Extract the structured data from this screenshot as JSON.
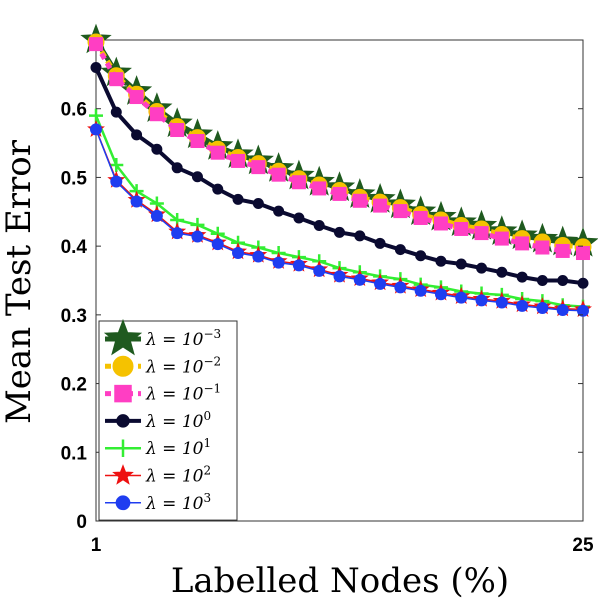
{
  "chart_data": {
    "type": "line",
    "xlabel": "Labelled Nodes (%)",
    "ylabel": "Mean Test Error",
    "xlim": [
      1,
      25
    ],
    "ylim": [
      0,
      0.7
    ],
    "x_ticks": [
      "1",
      "25"
    ],
    "y_ticks": [
      "0",
      "0.1",
      "0.2",
      "0.3",
      "0.4",
      "0.5",
      "0.6"
    ],
    "grid": false,
    "legend_position": "bottom-left",
    "x": [
      1,
      2,
      3,
      4,
      5,
      6,
      7,
      8,
      9,
      10,
      11,
      12,
      13,
      14,
      15,
      16,
      17,
      18,
      19,
      20,
      21,
      22,
      23,
      24,
      25
    ],
    "series": [
      {
        "name": "λ = 10^-3",
        "label_base": "λ = 10",
        "label_exp": "−3",
        "color": "#1f5a1f",
        "marker": "star",
        "width": 5,
        "values": [
          0.7,
          0.652,
          0.625,
          0.6,
          0.578,
          0.562,
          0.545,
          0.533,
          0.524,
          0.513,
          0.502,
          0.493,
          0.485,
          0.475,
          0.468,
          0.46,
          0.45,
          0.442,
          0.434,
          0.429,
          0.421,
          0.415,
          0.41,
          0.406,
          0.404
        ]
      },
      {
        "name": "λ = 10^-2",
        "label_base": "λ = 10",
        "label_exp": "−2",
        "color": "#f5c200",
        "marker": "circle",
        "width": 5,
        "values": [
          0.697,
          0.648,
          0.621,
          0.596,
          0.574,
          0.558,
          0.541,
          0.529,
          0.52,
          0.509,
          0.498,
          0.489,
          0.481,
          0.471,
          0.464,
          0.456,
          0.446,
          0.438,
          0.43,
          0.425,
          0.417,
          0.411,
          0.406,
          0.401,
          0.399
        ]
      },
      {
        "name": "λ = 10^-1",
        "label_base": "λ = 10",
        "label_exp": "−1",
        "color": "#ff3ec3",
        "marker": "square",
        "width": 5,
        "values": [
          0.694,
          0.643,
          0.617,
          0.592,
          0.569,
          0.553,
          0.536,
          0.524,
          0.515,
          0.504,
          0.493,
          0.484,
          0.476,
          0.466,
          0.459,
          0.451,
          0.441,
          0.433,
          0.425,
          0.419,
          0.411,
          0.404,
          0.398,
          0.393,
          0.39
        ]
      },
      {
        "name": "λ = 10^0",
        "label_base": "λ = 10",
        "label_exp": "0",
        "color": "#0a0a30",
        "marker": "circle",
        "width": 4,
        "values": [
          0.66,
          0.595,
          0.562,
          0.541,
          0.514,
          0.501,
          0.483,
          0.468,
          0.462,
          0.451,
          0.441,
          0.43,
          0.42,
          0.415,
          0.404,
          0.395,
          0.386,
          0.378,
          0.374,
          0.368,
          0.362,
          0.355,
          0.35,
          0.35,
          0.346
        ]
      },
      {
        "name": "λ = 10^1",
        "label_base": "λ = 10",
        "label_exp": "1",
        "color": "#33ee33",
        "marker": "plus",
        "width": 2.5,
        "values": [
          0.59,
          0.518,
          0.48,
          0.462,
          0.438,
          0.431,
          0.418,
          0.405,
          0.398,
          0.39,
          0.384,
          0.378,
          0.368,
          0.362,
          0.356,
          0.352,
          0.344,
          0.34,
          0.334,
          0.331,
          0.329,
          0.323,
          0.32,
          0.314,
          0.312
        ]
      },
      {
        "name": "λ = 10^2",
        "label_base": "λ = 10",
        "label_exp": "2",
        "color": "#ee1111",
        "marker": "star",
        "width": 1.5,
        "values": [
          0.57,
          0.496,
          0.467,
          0.446,
          0.421,
          0.416,
          0.405,
          0.392,
          0.387,
          0.378,
          0.374,
          0.366,
          0.358,
          0.353,
          0.347,
          0.342,
          0.337,
          0.332,
          0.327,
          0.323,
          0.32,
          0.315,
          0.312,
          0.309,
          0.308
        ]
      },
      {
        "name": "λ = 10^3",
        "label_base": "λ = 10",
        "label_exp": "3",
        "color": "#1f3df0",
        "marker": "circle",
        "width": 1.5,
        "values": [
          0.57,
          0.494,
          0.465,
          0.444,
          0.419,
          0.414,
          0.403,
          0.39,
          0.385,
          0.376,
          0.372,
          0.364,
          0.356,
          0.351,
          0.345,
          0.34,
          0.335,
          0.33,
          0.325,
          0.321,
          0.318,
          0.313,
          0.31,
          0.307,
          0.306
        ]
      }
    ]
  }
}
